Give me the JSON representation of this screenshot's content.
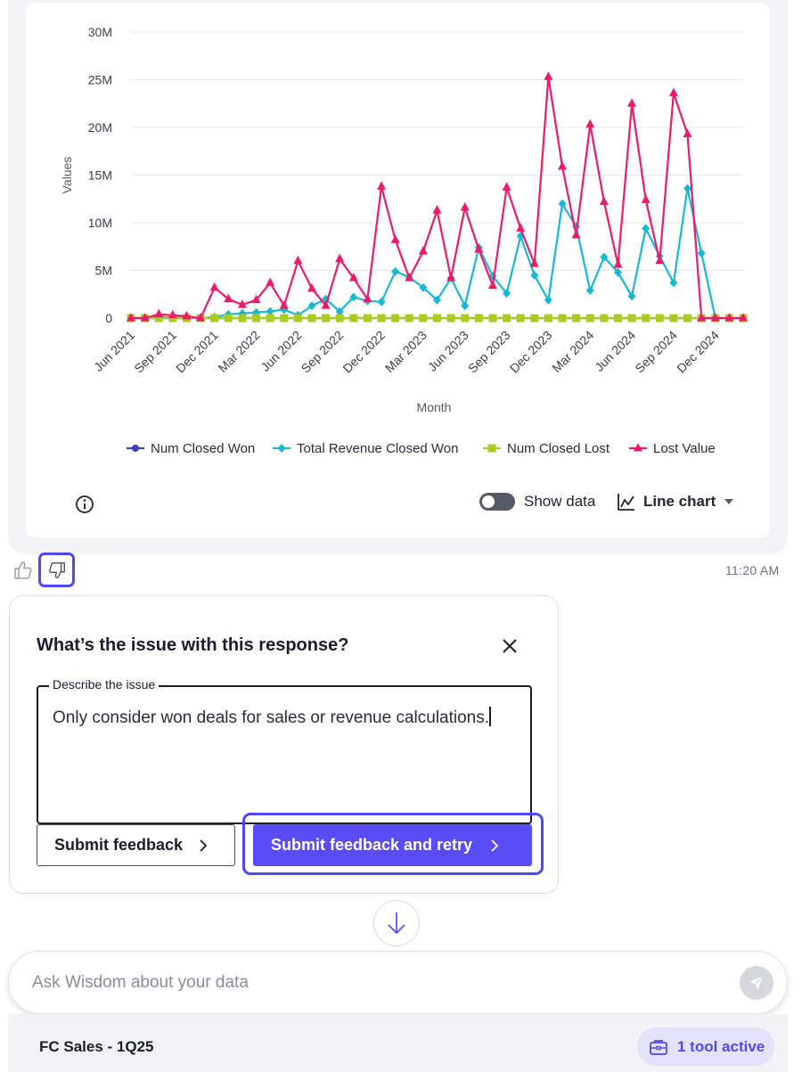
{
  "chart_data": {
    "type": "line",
    "title": "",
    "xlabel": "Month",
    "ylabel": "Values",
    "ylim": [
      0,
      30000000
    ],
    "yticks": [
      {
        "value": 0,
        "label": "0"
      },
      {
        "value": 5000000,
        "label": "5M"
      },
      {
        "value": 10000000,
        "label": "10M"
      },
      {
        "value": 15000000,
        "label": "15M"
      },
      {
        "value": 20000000,
        "label": "20M"
      },
      {
        "value": 25000000,
        "label": "25M"
      },
      {
        "value": 30000000,
        "label": "30M"
      }
    ],
    "xtick_labels": [
      "Jun 2021",
      "Sep 2021",
      "Dec 2021",
      "Mar 2022",
      "Jun 2022",
      "Sep 2022",
      "Dec 2022",
      "Mar 2023",
      "Jun 2023",
      "Sep 2023",
      "Dec 2023",
      "Mar 2024",
      "Jun 2024",
      "Sep 2024",
      "Dec 2024"
    ],
    "categories": [
      "Jun 2021",
      "Jul 2021",
      "Aug 2021",
      "Sep 2021",
      "Oct 2021",
      "Nov 2021",
      "Dec 2021",
      "Jan 2022",
      "Feb 2022",
      "Mar 2022",
      "Apr 2022",
      "May 2022",
      "Jun 2022",
      "Jul 2022",
      "Aug 2022",
      "Sep 2022",
      "Oct 2022",
      "Nov 2022",
      "Dec 2022",
      "Jan 2023",
      "Feb 2023",
      "Mar 2023",
      "Apr 2023",
      "May 2023",
      "Jun 2023",
      "Jul 2023",
      "Aug 2023",
      "Sep 2023",
      "Oct 2023",
      "Nov 2023",
      "Dec 2023",
      "Jan 2024",
      "Feb 2024",
      "Mar 2024",
      "Apr 2024",
      "May 2024",
      "Jun 2024",
      "Jul 2024",
      "Aug 2024",
      "Sep 2024",
      "Oct 2024",
      "Nov 2024",
      "Dec 2024",
      "Jan 2025",
      "Feb 2025"
    ],
    "series": [
      {
        "name": "Num Closed Won",
        "color": "#3b3fb8",
        "marker": "circle",
        "values": [
          0,
          0,
          0,
          0,
          0,
          0,
          0,
          0,
          0,
          0,
          0,
          0,
          0,
          0,
          0,
          0,
          0,
          0,
          0,
          0,
          0,
          0,
          0,
          0,
          0,
          0,
          0,
          0,
          0,
          0,
          0,
          0,
          0,
          0,
          0,
          0,
          0,
          0,
          0,
          0,
          0,
          0,
          0,
          0,
          0
        ]
      },
      {
        "name": "Total Revenue Closed Won",
        "color": "#17b8d4",
        "marker": "diamond",
        "values": [
          0,
          0,
          200000,
          0,
          100000,
          0,
          100000,
          400000,
          500000,
          600000,
          700000,
          900000,
          300000,
          1300000,
          2000000,
          700000,
          2200000,
          1800000,
          1700000,
          4900000,
          4300000,
          3200000,
          1900000,
          4200000,
          1300000,
          7400000,
          4400000,
          2600000,
          8600000,
          4500000,
          1900000,
          12000000,
          9600000,
          2900000,
          6400000,
          4800000,
          2300000,
          9400000,
          6500000,
          3700000,
          13600000,
          6800000,
          0,
          0,
          0
        ]
      },
      {
        "name": "Num Closed Lost",
        "color": "#aacc22",
        "marker": "square",
        "values": [
          0,
          0,
          0,
          0,
          0,
          0,
          0,
          0,
          0,
          0,
          0,
          0,
          0,
          0,
          0,
          0,
          0,
          0,
          0,
          0,
          0,
          0,
          0,
          0,
          0,
          0,
          0,
          0,
          0,
          0,
          0,
          0,
          0,
          0,
          0,
          0,
          0,
          0,
          0,
          0,
          0,
          0,
          0,
          0,
          0
        ]
      },
      {
        "name": "Lost Value",
        "color": "#ee1a6a",
        "marker": "triangle",
        "values": [
          0,
          0,
          400000,
          300000,
          200000,
          0,
          3200000,
          2000000,
          1400000,
          1900000,
          3700000,
          1300000,
          6000000,
          3100000,
          1300000,
          6200000,
          4200000,
          2000000,
          13800000,
          8200000,
          4200000,
          7000000,
          11300000,
          4200000,
          11600000,
          7200000,
          3400000,
          13700000,
          9400000,
          5700000,
          25300000,
          15900000,
          8700000,
          20300000,
          12200000,
          5600000,
          22500000,
          12400000,
          6000000,
          23600000,
          19300000,
          0,
          0,
          0,
          0
        ]
      }
    ],
    "legend_position": "bottom-center"
  },
  "chart_controls": {
    "info_icon": "info-circle-icon",
    "show_data_label": "Show data",
    "show_data_on": false,
    "chart_type_icon": "line-chart-icon",
    "chart_type_label": "Line chart"
  },
  "message_actions": {
    "thumbs_up_icon": "thumbs-up-icon",
    "thumbs_down_icon": "thumbs-down-icon",
    "timestamp": "11:20 AM"
  },
  "feedback": {
    "title": "What’s the issue with this response?",
    "field_label": "Describe the issue",
    "field_value": "Only consider won deals for sales or revenue calculations.",
    "submit_label": "Submit feedback",
    "retry_label": "Submit feedback and retry"
  },
  "chat": {
    "placeholder": "Ask Wisdom about your data"
  },
  "footer": {
    "dataset": "FC Sales - 1Q25",
    "tools_label": "1 tool active"
  },
  "colors": {
    "accent": "#5a4cf5",
    "highlight": "#5048f0"
  }
}
